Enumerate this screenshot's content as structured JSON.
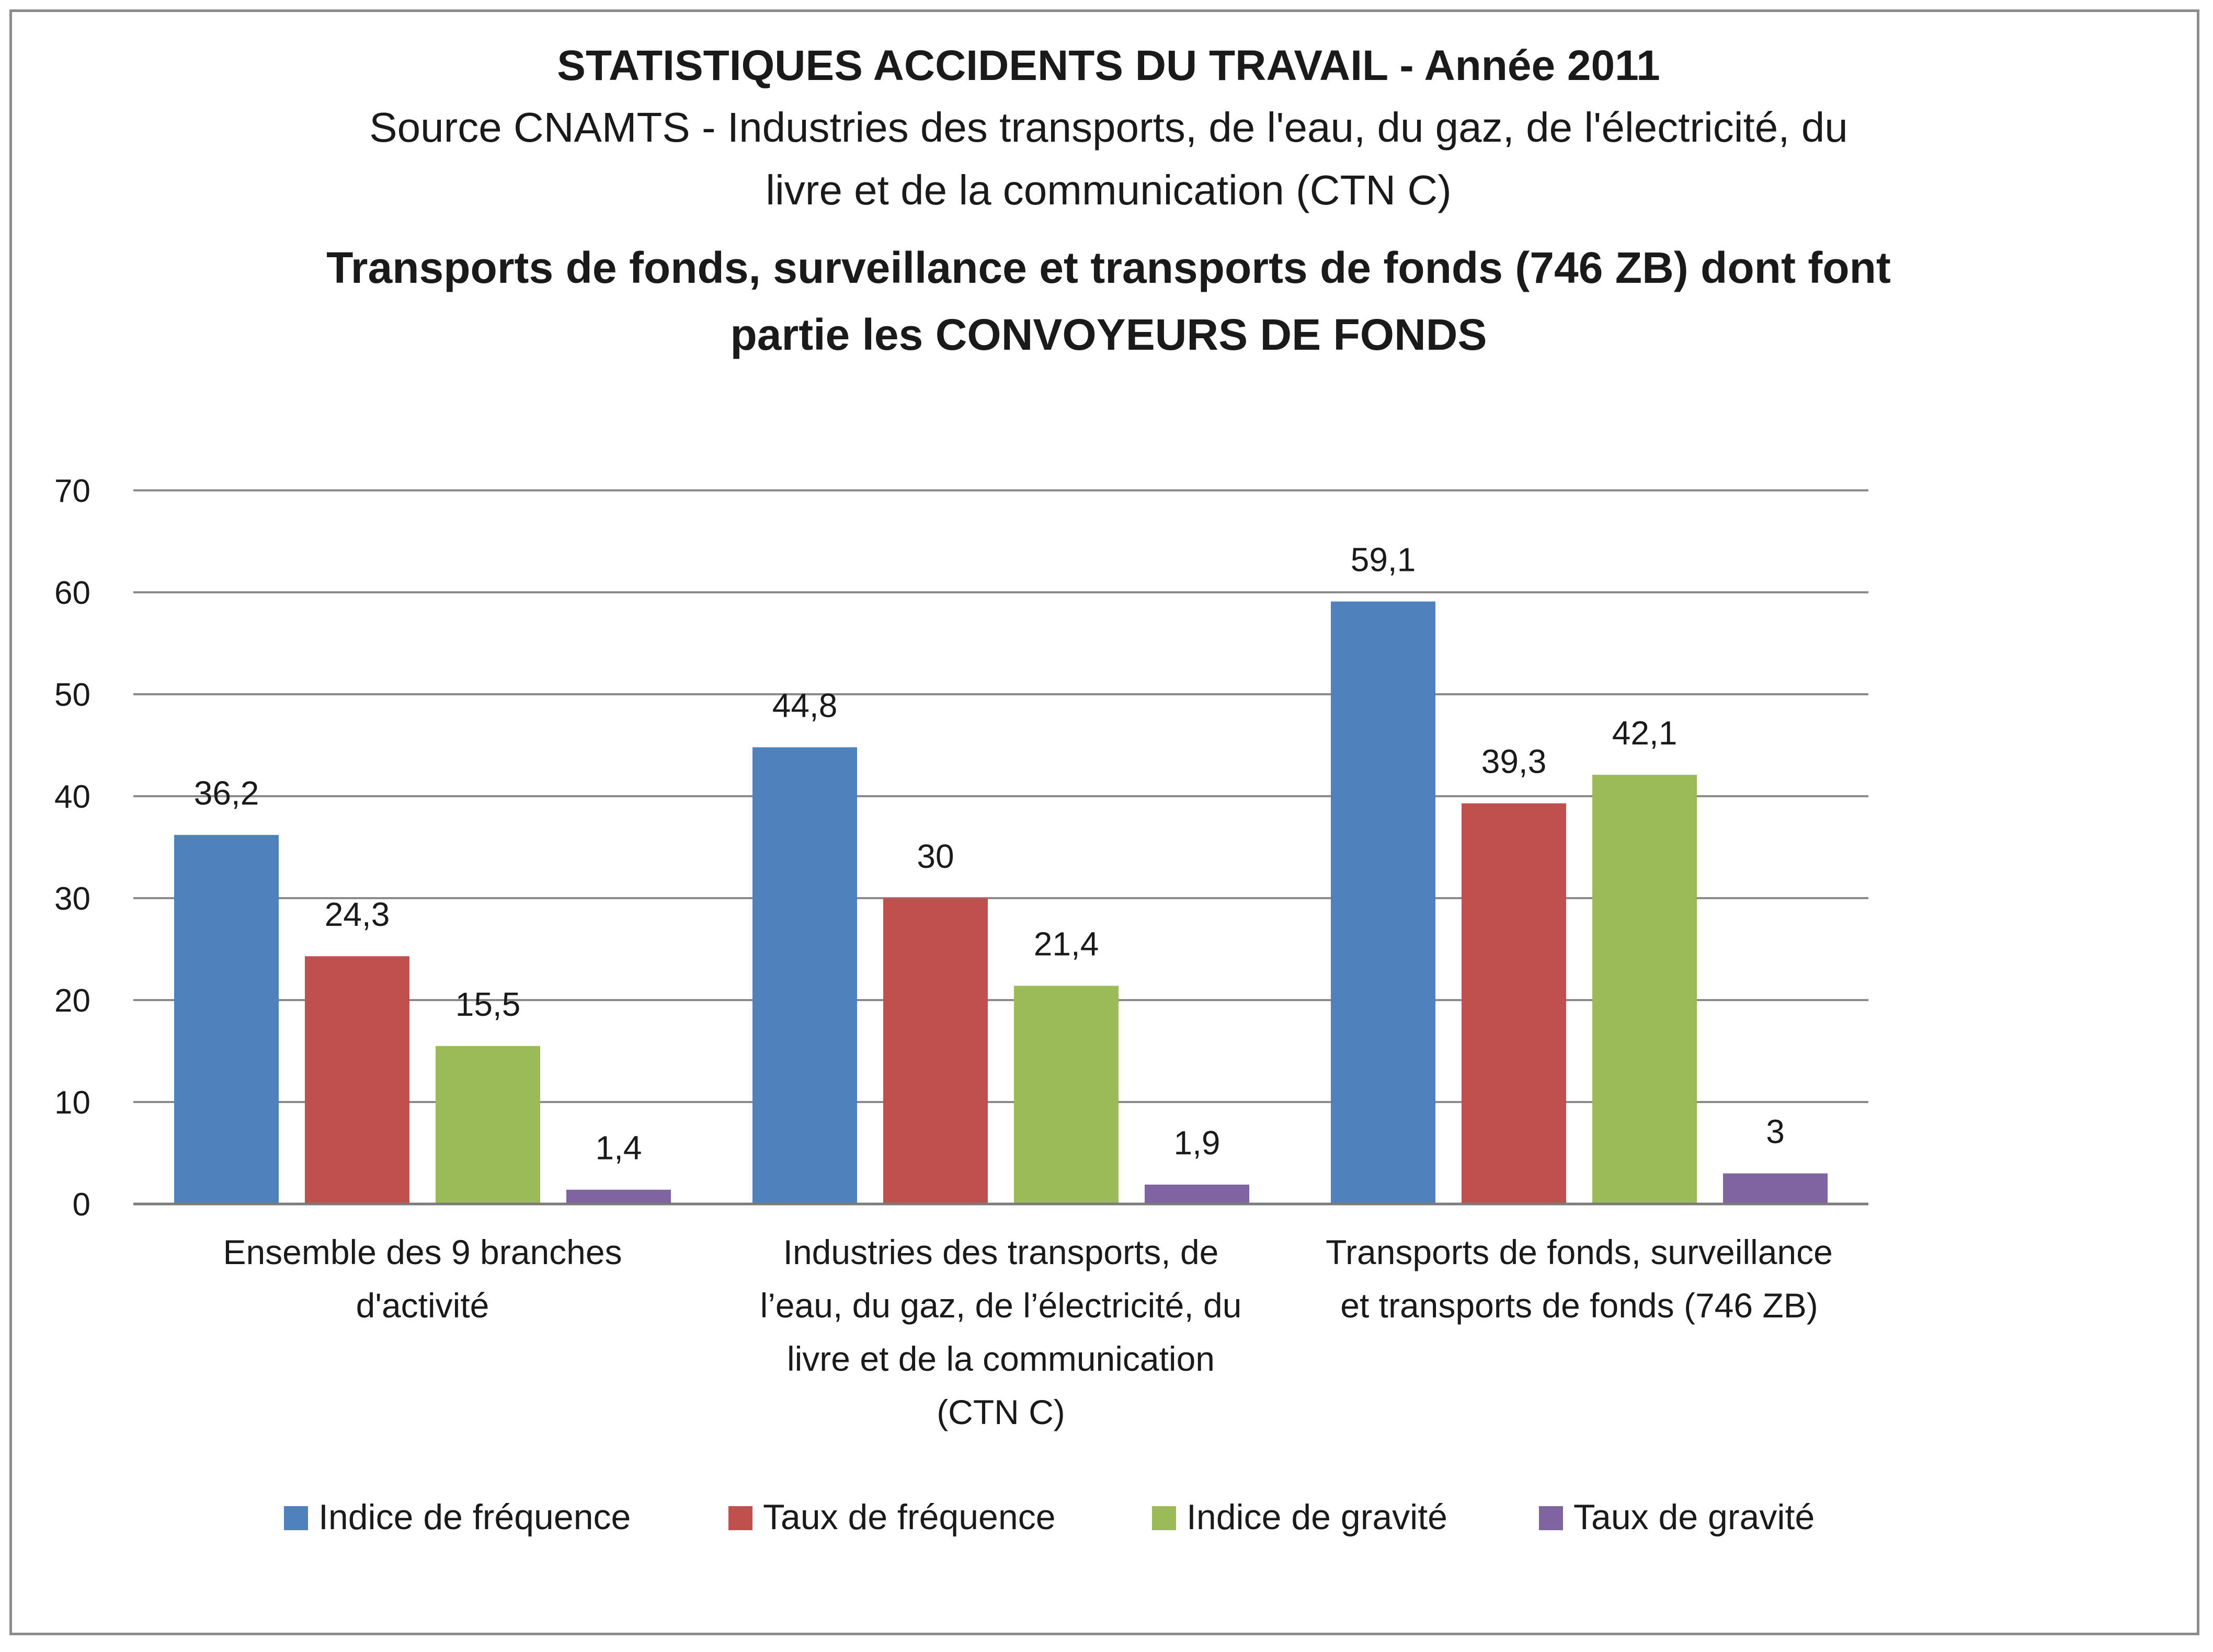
{
  "chart_data": {
    "type": "bar",
    "title_lines": [
      "STATISTIQUES ACCIDENTS DU TRAVAIL - Année 2011"
    ],
    "source_lines": [
      "Source CNAMTS - Industries des transports, de l'eau, du gaz, de l'électricité, du",
      "livre et de la communication  (CTN C)"
    ],
    "subtitle_lines": [
      "Transports de fonds, surveillance et transports de fonds (746 ZB) dont font",
      "partie les CONVOYEURS DE FONDS"
    ],
    "categories": [
      [
        "Ensemble des 9 branches",
        "d'activité"
      ],
      [
        "Industries des transports, de",
        "l’eau, du gaz, de l’électricité, du",
        "livre et de la communication",
        "(CTN C)"
      ],
      [
        "Transports de fonds, surveillance",
        "et transports de fonds (746 ZB)"
      ]
    ],
    "series": [
      {
        "name": "Indice de fréquence",
        "color": "#4f81bd",
        "values": [
          36.2,
          44.8,
          59.1
        ],
        "labels": [
          "36,2",
          "44,8",
          "59,1"
        ]
      },
      {
        "name": "Taux de fréquence",
        "color": "#c0504d",
        "values": [
          24.3,
          30,
          39.3
        ],
        "labels": [
          "24,3",
          "30",
          "39,3"
        ]
      },
      {
        "name": "Indice de gravité",
        "color": "#9bbb59",
        "values": [
          15.5,
          21.4,
          42.1
        ],
        "labels": [
          "15,5",
          "21,4",
          "42,1"
        ]
      },
      {
        "name": "Taux de gravité",
        "color": "#8064a2",
        "values": [
          1.4,
          1.9,
          3
        ],
        "labels": [
          "1,4",
          "1,9",
          "3"
        ]
      }
    ],
    "ylim": [
      0,
      70
    ],
    "yticks": [
      0,
      10,
      20,
      30,
      40,
      50,
      60,
      70
    ],
    "ytick_labels": [
      "0",
      "10",
      "20",
      "30",
      "40",
      "50",
      "60",
      "70"
    ],
    "grid": true,
    "legend_position": "bottom"
  }
}
